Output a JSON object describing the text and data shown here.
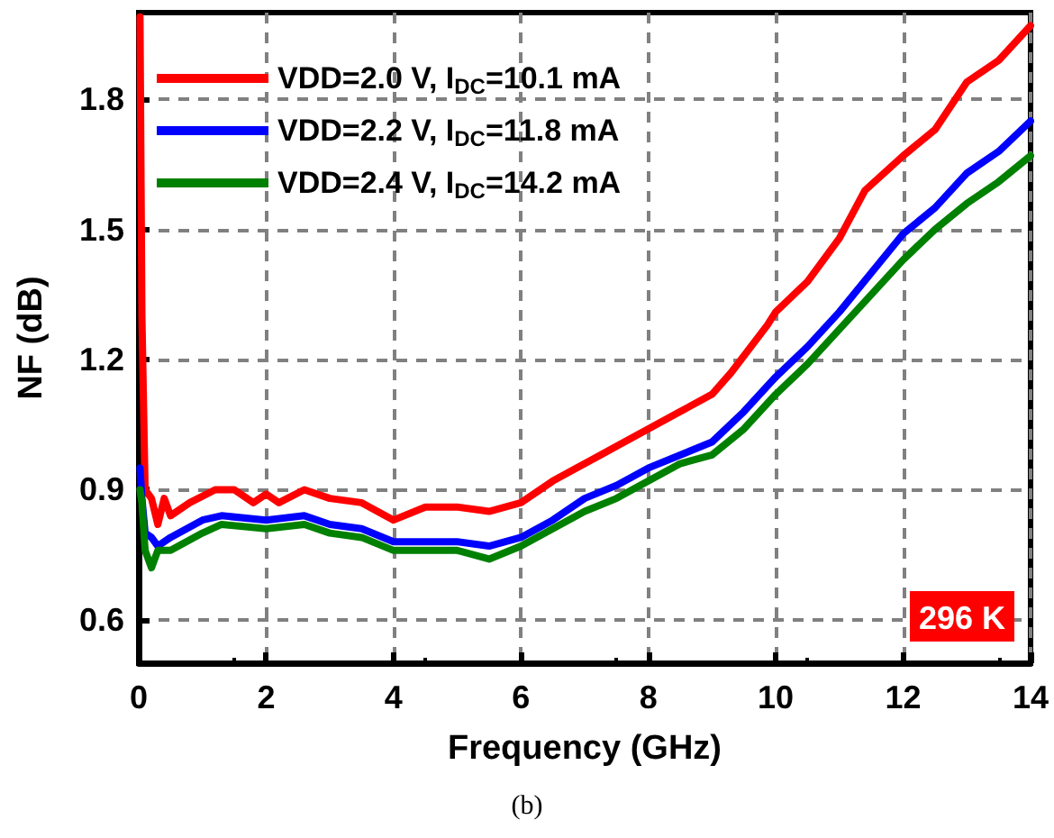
{
  "chart_data": {
    "type": "line",
    "xlabel": "Frequency (GHz)",
    "ylabel": "NF (dB)",
    "xlim": [
      0,
      14
    ],
    "xticks": [
      0,
      2,
      4,
      6,
      8,
      10,
      12,
      14
    ],
    "ylim": [
      0.5,
      2.0
    ],
    "yticks": [
      0.6,
      0.9,
      1.2,
      1.5,
      1.8
    ],
    "grid": true,
    "legend": "top left",
    "marker": "none",
    "line_style": "solid",
    "annotations": [
      "296 K",
      "(b)"
    ],
    "series": [
      {
        "name": "VDD=2.0 V, I$_{DC}$=10.1 mA",
        "color": "#ff0000",
        "x": [
          0.02,
          0.05,
          0.1,
          0.2,
          0.3,
          0.4,
          0.5,
          0.8,
          1.2,
          1.5,
          1.8,
          2.0,
          2.2,
          2.6,
          3.0,
          3.5,
          4.0,
          4.5,
          5.0,
          5.5,
          6.0,
          6.5,
          7.0,
          7.5,
          8.0,
          8.5,
          9.0,
          9.3,
          9.87,
          10.0,
          10.5,
          11.0,
          11.4,
          12.0,
          12.5,
          13.0,
          13.5,
          14.0
        ],
        "values": [
          1.99,
          1.3,
          0.9,
          0.88,
          0.82,
          0.88,
          0.84,
          0.87,
          0.9,
          0.9,
          0.87,
          0.89,
          0.87,
          0.9,
          0.88,
          0.87,
          0.83,
          0.86,
          0.86,
          0.85,
          0.87,
          0.92,
          0.96,
          1.0,
          1.04,
          1.08,
          1.12,
          1.17,
          1.28,
          1.31,
          1.38,
          1.48,
          1.59,
          1.67,
          1.73,
          1.84,
          1.89,
          1.97
        ]
      },
      {
        "name": "VDD=2.2 V, I$_{DC}$=11.8 mA",
        "color": "#0000ff",
        "x": [
          0.02,
          0.05,
          0.1,
          0.2,
          0.3,
          0.5,
          1.0,
          1.3,
          2.0,
          2.6,
          3.0,
          3.5,
          4.0,
          4.5,
          5.0,
          5.5,
          6.0,
          6.5,
          7.0,
          7.5,
          8.0,
          8.5,
          9.0,
          9.5,
          10.0,
          10.5,
          11.0,
          11.5,
          12.0,
          12.5,
          13.0,
          13.5,
          14.0
        ],
        "values": [
          0.95,
          0.88,
          0.8,
          0.79,
          0.77,
          0.79,
          0.83,
          0.84,
          0.83,
          0.84,
          0.82,
          0.81,
          0.78,
          0.78,
          0.78,
          0.77,
          0.79,
          0.83,
          0.88,
          0.91,
          0.95,
          0.98,
          1.01,
          1.08,
          1.16,
          1.23,
          1.31,
          1.4,
          1.49,
          1.55,
          1.63,
          1.68,
          1.75
        ]
      },
      {
        "name": "VDD=2.4 V, I$_{DC}$=14.2 mA",
        "color": "#008000",
        "x": [
          0.02,
          0.05,
          0.1,
          0.2,
          0.3,
          0.5,
          1.0,
          1.3,
          2.0,
          2.6,
          3.0,
          3.5,
          4.0,
          4.5,
          5.0,
          5.5,
          6.0,
          6.5,
          7.0,
          7.5,
          8.0,
          8.5,
          9.0,
          9.5,
          10.0,
          10.5,
          11.0,
          11.5,
          12.0,
          12.5,
          13.0,
          13.5,
          14.0
        ],
        "values": [
          0.9,
          0.87,
          0.76,
          0.72,
          0.76,
          0.76,
          0.8,
          0.82,
          0.81,
          0.82,
          0.8,
          0.79,
          0.76,
          0.76,
          0.76,
          0.74,
          0.77,
          0.81,
          0.85,
          0.88,
          0.92,
          0.96,
          0.98,
          1.04,
          1.12,
          1.19,
          1.27,
          1.35,
          1.43,
          1.5,
          1.56,
          1.61,
          1.67
        ]
      }
    ]
  }
}
